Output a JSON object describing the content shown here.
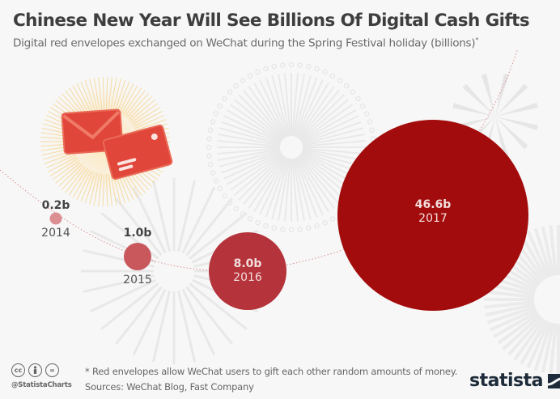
{
  "header": {
    "title": "Chinese New Year Will See Billions Of Digital Cash Gifts",
    "subtitle": "Digital red envelopes exchanged on WeChat during the Spring Festival holiday (billions)",
    "subtitle_marker": "*"
  },
  "chart_data": {
    "type": "bubble",
    "title": "Chinese New Year Will See Billions Of Digital Cash Gifts",
    "subtitle": "Digital red envelopes exchanged on WeChat during the Spring Festival holiday (billions)*",
    "categories": [
      "2014",
      "2015",
      "2016",
      "2017"
    ],
    "values": [
      0.2,
      1.0,
      8.0,
      46.6
    ],
    "labels": [
      "0.2b",
      "1.0b",
      "8.0b",
      "46.6b"
    ],
    "unit": "billions",
    "colors": [
      "#dc8f93",
      "#c9585d",
      "#b5333a",
      "#a30c0c"
    ],
    "xlabel": "",
    "ylabel": "",
    "grid": false,
    "legend": "none"
  },
  "bubbles": [
    {
      "value": "0.2b",
      "year": "2014"
    },
    {
      "value": "1.0b",
      "year": "2015"
    },
    {
      "value": "8.0b",
      "year": "2016"
    },
    {
      "value": "46.6b",
      "year": "2017"
    }
  ],
  "footer": {
    "note": "* Red envelopes allow WeChat users to gift each other random amounts of money.",
    "sources": "Sources: WeChat Blog, Fast Company",
    "handle": "@StatistaCharts",
    "license_icons": [
      "cc",
      "by",
      "nd"
    ],
    "cc_label": "cc",
    "nd_label": "=",
    "brand": "statista"
  },
  "colors": {
    "accent": "#a30c0c",
    "envelope": "#e0463a",
    "brand_dark": "#1d2b3a"
  }
}
